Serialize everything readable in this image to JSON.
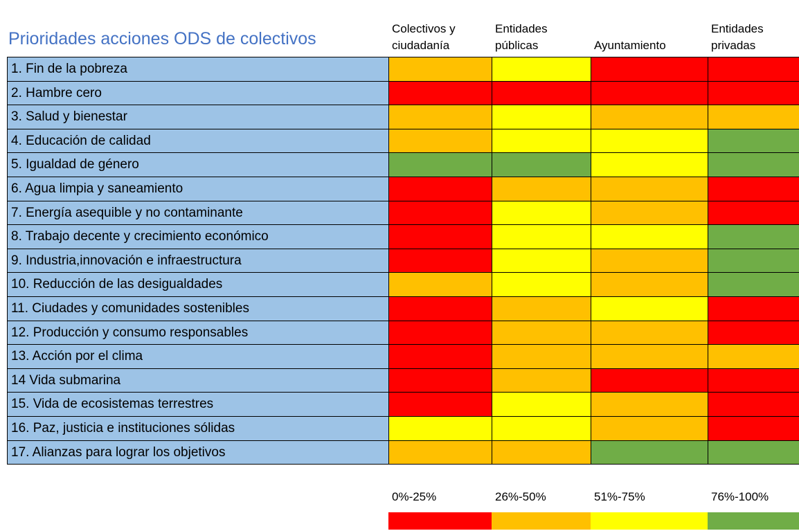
{
  "title": "Prioridades acciones ODS de colectivos",
  "columns": [
    [
      "Colectivos y",
      "ciudadanía"
    ],
    [
      "Entidades",
      "públicas"
    ],
    [
      "Ayuntamiento"
    ],
    [
      "Entidades",
      "privadas"
    ]
  ],
  "rows": [
    {
      "label": "1. Fin de la pobreza",
      "colors": [
        "#FFC000",
        "#FFFF00",
        "#FF0000",
        "#FF0000"
      ]
    },
    {
      "label": "2. Hambre cero",
      "colors": [
        "#FF0000",
        "#FF0000",
        "#FF0000",
        "#FF0000"
      ]
    },
    {
      "label": "3. Salud y bienestar",
      "colors": [
        "#FFC000",
        "#FFFF00",
        "#FFC000",
        "#FFC000"
      ]
    },
    {
      "label": "4. Educación de calidad",
      "colors": [
        "#FFC000",
        "#FFFF00",
        "#FFFF00",
        "#70AD47"
      ]
    },
    {
      "label": "5. Igualdad de género",
      "colors": [
        "#70AD47",
        "#70AD47",
        "#FFFF00",
        "#70AD47"
      ]
    },
    {
      "label": "6. Agua limpia y saneamiento",
      "colors": [
        "#FF0000",
        "#FFC000",
        "#FFC000",
        "#FF0000"
      ]
    },
    {
      "label": "7. Energía asequible y no contaminante",
      "colors": [
        "#FF0000",
        "#FFFF00",
        "#FFC000",
        "#FF0000"
      ]
    },
    {
      "label": "8. Trabajo decente y crecimiento económico",
      "colors": [
        "#FF0000",
        "#FFFF00",
        "#FFFF00",
        "#70AD47"
      ]
    },
    {
      "label": "9. Industria,innovación e infraestructura",
      "colors": [
        "#FF0000",
        "#FFFF00",
        "#FFC000",
        "#70AD47"
      ]
    },
    {
      "label": "10. Reducción de las desigualdades",
      "colors": [
        "#FFC000",
        "#FFFF00",
        "#FFC000",
        "#70AD47"
      ]
    },
    {
      "label": "11. Ciudades y comunidades sostenibles",
      "colors": [
        "#FF0000",
        "#FFC000",
        "#FFFF00",
        "#FF0000"
      ]
    },
    {
      "label": "12. Producción y consumo responsables",
      "colors": [
        "#FF0000",
        "#FFC000",
        "#FFC000",
        "#FF0000"
      ]
    },
    {
      "label": "13. Acción por el clima",
      "colors": [
        "#FF0000",
        "#FFC000",
        "#FFC000",
        "#FFC000"
      ]
    },
    {
      "label": "14 Vida submarina",
      "colors": [
        "#FF0000",
        "#FFC000",
        "#FF0000",
        "#FF0000"
      ]
    },
    {
      "label": "15. Vida de ecosistemas terrestres",
      "colors": [
        "#FF0000",
        "#FFFF00",
        "#FFC000",
        "#FF0000"
      ]
    },
    {
      "label": "16. Paz, justicia e instituciones sólidas",
      "colors": [
        "#FFFF00",
        "#FFFF00",
        "#FFC000",
        "#FF0000"
      ]
    },
    {
      "label": "17. Alianzas para lograr los objetivos",
      "colors": [
        "#FFC000",
        "#FFC000",
        "#70AD47",
        "#70AD47"
      ]
    }
  ],
  "legend": [
    {
      "label": "0%-25%",
      "color": "#FF0000"
    },
    {
      "label": "26%-50%",
      "color": "#FFC000"
    },
    {
      "label": "51%-75%",
      "color": "#FFFF00"
    },
    {
      "label": "76%-100%",
      "color": "#70AD47"
    }
  ]
}
